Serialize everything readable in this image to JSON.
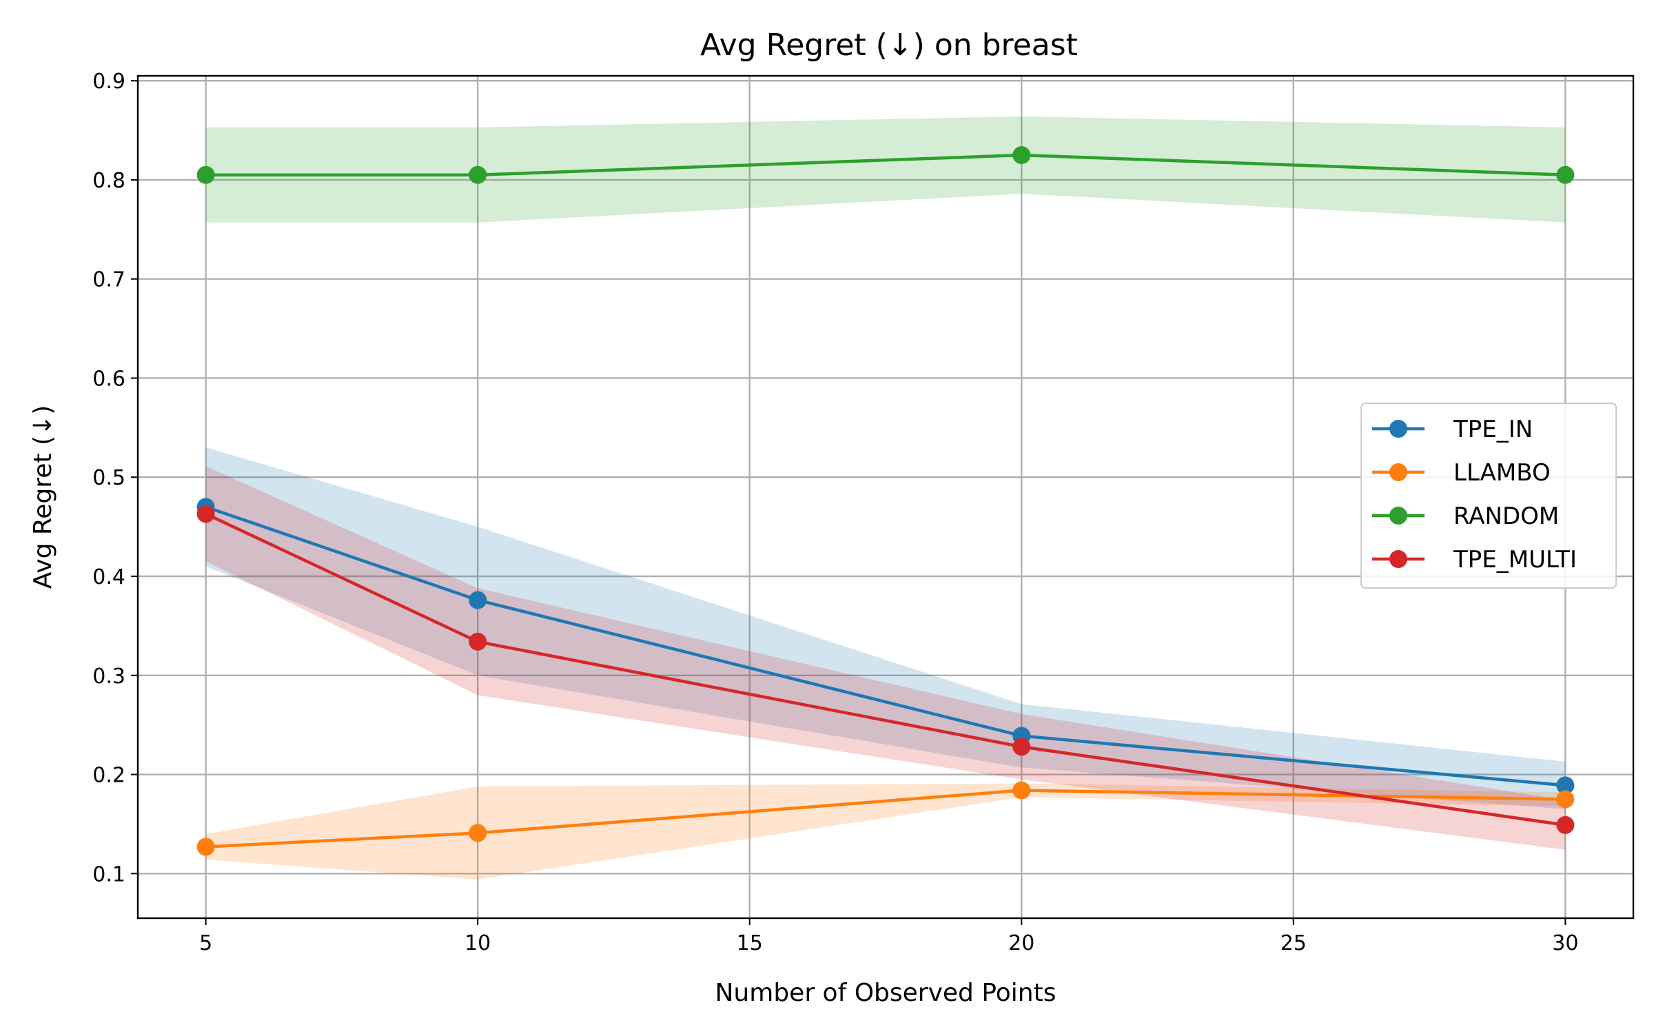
{
  "chart_data": {
    "type": "line",
    "title": "Avg Regret (↓) on breast",
    "xlabel": "Number of Observed Points",
    "ylabel": "Avg Regret (↓)",
    "x": [
      5,
      10,
      20,
      30
    ],
    "xlim": [
      3.75,
      31.25
    ],
    "ylim": [
      0.055,
      0.905
    ],
    "xticks": [
      "5",
      "10",
      "15",
      "20",
      "25",
      "30"
    ],
    "yticks": [
      "0.1",
      "0.2",
      "0.3",
      "0.4",
      "0.5",
      "0.6",
      "0.7",
      "0.8",
      "0.9"
    ],
    "grid": true,
    "legend_position": "center-right",
    "series": [
      {
        "name": "TPE_IN",
        "color": "#1f77b4",
        "values": [
          0.47,
          0.376,
          0.239,
          0.189
        ],
        "lower": [
          0.41,
          0.3,
          0.207,
          0.165
        ],
        "upper": [
          0.53,
          0.45,
          0.271,
          0.213
        ]
      },
      {
        "name": "LLAMBO",
        "color": "#ff7f0e",
        "values": [
          0.127,
          0.141,
          0.184,
          0.175
        ],
        "lower": [
          0.114,
          0.094,
          0.177,
          0.168
        ],
        "upper": [
          0.14,
          0.188,
          0.191,
          0.182
        ]
      },
      {
        "name": "RANDOM",
        "color": "#2ca02c",
        "values": [
          0.805,
          0.805,
          0.825,
          0.805
        ],
        "lower": [
          0.757,
          0.757,
          0.786,
          0.757
        ],
        "upper": [
          0.853,
          0.853,
          0.864,
          0.853
        ]
      },
      {
        "name": "TPE_MULTI",
        "color": "#d62728",
        "values": [
          0.463,
          0.334,
          0.228,
          0.149
        ],
        "lower": [
          0.415,
          0.28,
          0.195,
          0.124
        ],
        "upper": [
          0.511,
          0.388,
          0.261,
          0.174
        ]
      }
    ]
  }
}
